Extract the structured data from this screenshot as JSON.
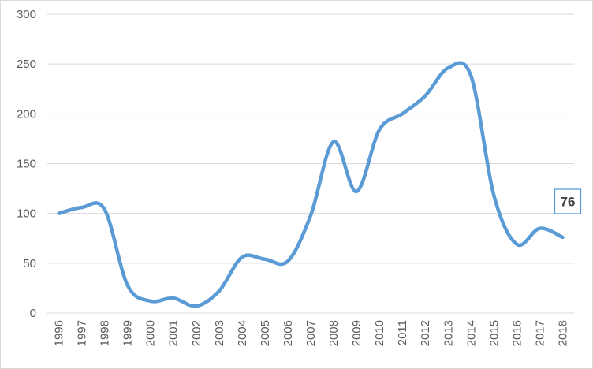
{
  "chart_data": {
    "type": "line",
    "title": "",
    "xlabel": "",
    "ylabel": "",
    "categories": [
      "1996",
      "1997",
      "1998",
      "1999",
      "2000",
      "2001",
      "2002",
      "2003",
      "2004",
      "2005",
      "2006",
      "2007",
      "2008",
      "2009",
      "2010",
      "2011",
      "2012",
      "2013",
      "2014",
      "2015",
      "2016",
      "2017",
      "2018"
    ],
    "series": [
      {
        "values": [
          100,
          106,
          104,
          28,
          12,
          15,
          7,
          22,
          56,
          54,
          52,
          98,
          172,
          122,
          184,
          200,
          218,
          246,
          238,
          118,
          69,
          85,
          76
        ],
        "color": "#5b9bd5"
      }
    ],
    "ylim": [
      0,
      300
    ],
    "yticks": [
      0,
      50,
      100,
      150,
      200,
      250,
      300
    ],
    "grid": "horizontal",
    "legend": "none",
    "data_labels": [
      {
        "category": "2018",
        "text": "76"
      }
    ],
    "colors": {
      "line": "#5b9bd5",
      "grid": "#d9d9d9",
      "label_border": "#5b9bd5",
      "tick_text": "#595959"
    }
  }
}
